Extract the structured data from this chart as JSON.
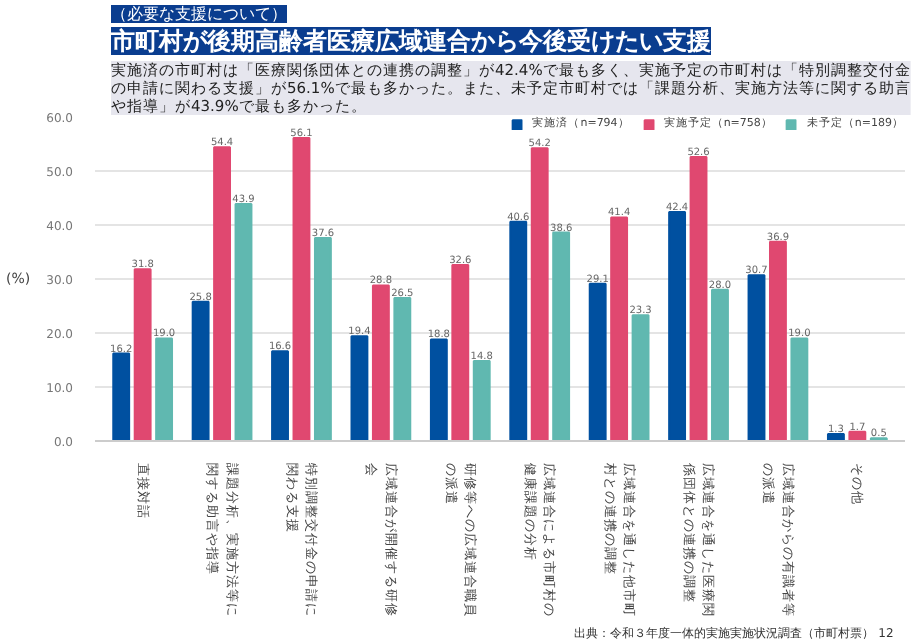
{
  "chart_data": {
    "type": "bar",
    "subtitle": "（必要な支援について）",
    "title": "市町村が後期高齢者医療広域連合から今後受けたい支援",
    "annotations": [
      "実施済の市町村は「医療関係団体との連携の調整」が42.4%で最も多く、実施予定の市町村は「特別調整交付金の申請に関わる支援」が56.1%で最も多かった。また、未予定市町村では「課題分析、実施方法等に関する助言や指導」が43.9%で最も多かった。",
      "出典：令和３年度一体的実施実施状況調査（市町村票）",
      "12"
    ],
    "ylabel": "(%)",
    "categories": [
      "直接対話",
      "課題分析、実施方法等に関する助言や指導",
      "特別調整交付金の申請に関わる支援",
      "広域連合が開催する研修会",
      "研修等への広域連合職員の派遣",
      "広域連合による市町村の健康課題の分析",
      "広域連合を通した他市町村との連携の調整",
      "広域連合を通した医療関係団体との連携の調整",
      "広域連合からの有識者等の派遣",
      "その他"
    ],
    "series": [
      {
        "name": "実施済（n=794）",
        "color": "#0050a0",
        "values": [
          16.2,
          25.8,
          16.6,
          19.4,
          18.8,
          40.6,
          29.1,
          42.4,
          30.7,
          1.3
        ],
        "value_labels": [
          "16.2",
          "25.8",
          "16.6",
          "19.4",
          "18.8",
          "40.6",
          "29.1",
          "42.4",
          "30.7",
          "1.3"
        ]
      },
      {
        "name": "実施予定（n=758）",
        "color": "#e04870",
        "values": [
          31.8,
          54.4,
          56.1,
          28.8,
          32.6,
          54.2,
          41.4,
          52.6,
          36.9,
          1.7
        ],
        "value_labels": [
          "31.8",
          "54.4",
          "56.1",
          "28.8",
          "32.6",
          "54.2",
          "41.4",
          "52.6",
          "36.9",
          "1.7"
        ]
      },
      {
        "name": "未予定（n=189）",
        "color": "#60b8b0",
        "values": [
          19.0,
          43.9,
          37.6,
          26.5,
          14.8,
          38.6,
          23.3,
          28.0,
          19.0,
          0.5
        ],
        "value_labels": [
          "19.0",
          "43.9",
          "37.6",
          "26.5",
          "14.8",
          "38.6",
          "23.3",
          "28.0",
          "19.0",
          "0.5"
        ]
      }
    ],
    "ylim": [
      0,
      60
    ],
    "yticks": [
      {
        "value": 0,
        "label": "0.0"
      },
      {
        "value": 10,
        "label": "10.0"
      },
      {
        "value": 20,
        "label": "20.0"
      },
      {
        "value": 30,
        "label": "30.0"
      },
      {
        "value": 40,
        "label": "40.0"
      },
      {
        "value": 50,
        "label": "50.0"
      },
      {
        "value": 60,
        "label": "60.0"
      }
    ],
    "grid": "y",
    "legend": "top right"
  }
}
